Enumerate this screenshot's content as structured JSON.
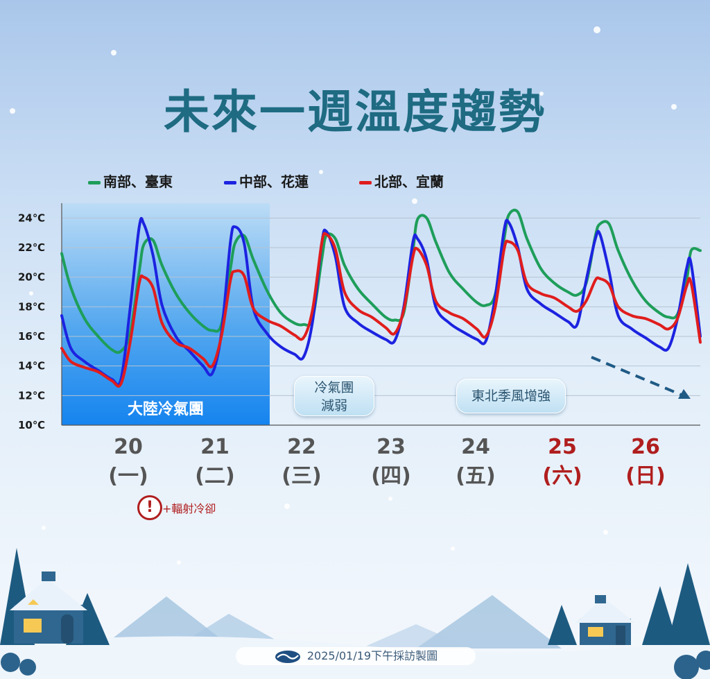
{
  "title": "未來一週溫度趨勢",
  "legend": [
    {
      "label": "南部、臺東",
      "color": "#1e9e5a"
    },
    {
      "label": "中部、花蓮",
      "color": "#1c23e0"
    },
    {
      "label": "北部、宜蘭",
      "color": "#e01d1d"
    }
  ],
  "days": [
    {
      "date": "20",
      "weekday": "(一)",
      "weekend": false
    },
    {
      "date": "21",
      "weekday": "(二)",
      "weekend": false
    },
    {
      "date": "22",
      "weekday": "(三)",
      "weekend": false
    },
    {
      "date": "23",
      "weekday": "(四)",
      "weekend": false
    },
    {
      "date": "24",
      "weekday": "(五)",
      "weekend": false
    },
    {
      "date": "25",
      "weekday": "(六)",
      "weekend": true
    },
    {
      "date": "26",
      "weekday": "(日)",
      "weekend": true
    }
  ],
  "annotations": {
    "cold_air_mass": "大陸冷氣團",
    "cold_weakening_line1": "冷氣團",
    "cold_weakening_line2": "減弱",
    "northeast_monsoon": "東北季風增強",
    "radiative_cooling": "+輻射冷卻",
    "warning_symbol": "!"
  },
  "footer": "2025/01/19下午採訪製圖",
  "icons": [
    "warning-icon",
    "trend-arrow-icon",
    "cwa-logo-icon"
  ],
  "chart_data": {
    "type": "line",
    "x_unit": "day index (0 = 20日 00:00, 7 = 27日 00:00)",
    "yticks": [
      "24℃",
      "22℃",
      "20℃",
      "18℃",
      "16℃",
      "14℃",
      "12℃",
      "10℃"
    ],
    "ylim": [
      10,
      25
    ],
    "xlim": [
      0,
      7
    ],
    "grid": true,
    "series": [
      {
        "name": "南部、臺東",
        "color": "#1e9e5a",
        "x": [
          0,
          0.1,
          0.25,
          0.4,
          0.55,
          0.65,
          0.75,
          0.85,
          0.9,
          1.0,
          1.1,
          1.25,
          1.4,
          1.55,
          1.65,
          1.75,
          1.85,
          1.9,
          2.0,
          2.1,
          2.25,
          2.4,
          2.55,
          2.65,
          2.75,
          2.85,
          2.9,
          3.0,
          3.1,
          3.25,
          3.4,
          3.55,
          3.65,
          3.75,
          3.85,
          3.9,
          4.0,
          4.1,
          4.25,
          4.4,
          4.55,
          4.65,
          4.75,
          4.85,
          4.9,
          5.0,
          5.1,
          5.25,
          5.4,
          5.55,
          5.65,
          5.75,
          5.85,
          5.9,
          6.0,
          6.1,
          6.25,
          6.4,
          6.55,
          6.65,
          6.75,
          6.85,
          6.9,
          7.0
        ],
        "values": [
          21.6,
          19.3,
          17.2,
          16.0,
          15.1,
          15.0,
          16.2,
          20.4,
          22.2,
          22.5,
          20.8,
          18.9,
          17.6,
          16.7,
          16.4,
          16.8,
          20.6,
          22.3,
          22.8,
          21.2,
          19.1,
          17.6,
          16.9,
          16.8,
          17.2,
          21.2,
          22.8,
          22.6,
          20.8,
          19.2,
          18.2,
          17.3,
          17.1,
          17.6,
          21.8,
          23.9,
          24.0,
          22.4,
          20.3,
          19.2,
          18.3,
          18.1,
          18.8,
          22.6,
          24.2,
          24.4,
          22.6,
          20.6,
          19.6,
          19.0,
          18.8,
          19.6,
          22.8,
          23.6,
          23.6,
          21.8,
          19.8,
          18.4,
          17.6,
          17.3,
          17.5,
          19.8,
          21.8,
          21.8
        ]
      },
      {
        "name": "中部、花蓮",
        "color": "#1c23e0",
        "x": [
          0,
          0.1,
          0.25,
          0.4,
          0.55,
          0.65,
          0.75,
          0.85,
          0.9,
          1.0,
          1.1,
          1.25,
          1.4,
          1.55,
          1.65,
          1.75,
          1.85,
          1.9,
          2.0,
          2.1,
          2.25,
          2.4,
          2.55,
          2.65,
          2.75,
          2.85,
          2.9,
          3.0,
          3.1,
          3.25,
          3.4,
          3.55,
          3.65,
          3.75,
          3.85,
          3.9,
          4.0,
          4.1,
          4.25,
          4.4,
          4.55,
          4.65,
          4.75,
          4.85,
          4.9,
          5.0,
          5.1,
          5.25,
          5.4,
          5.55,
          5.65,
          5.75,
          5.85,
          5.9,
          6.0,
          6.1,
          6.25,
          6.4,
          6.55,
          6.65,
          6.75,
          6.85,
          6.9,
          7.0
        ],
        "values": [
          17.4,
          15.2,
          14.3,
          13.7,
          13.1,
          13.1,
          17.9,
          23.4,
          23.6,
          21.5,
          18.1,
          16.0,
          15.0,
          14.0,
          13.5,
          16.2,
          22.4,
          23.4,
          22.3,
          17.9,
          16.2,
          15.3,
          14.8,
          14.6,
          17.0,
          22.3,
          23.1,
          21.4,
          18.0,
          16.9,
          16.3,
          15.8,
          15.7,
          18.0,
          22.4,
          22.6,
          21.2,
          18.0,
          16.9,
          16.3,
          15.8,
          15.7,
          18.6,
          23.2,
          23.7,
          22.0,
          19.2,
          18.2,
          17.6,
          17.0,
          16.8,
          19.8,
          22.6,
          22.9,
          20.4,
          17.4,
          16.5,
          15.9,
          15.3,
          15.2,
          17.2,
          20.6,
          20.9,
          16.0
        ]
      },
      {
        "name": "北部、宜蘭",
        "color": "#e01d1d",
        "x": [
          0,
          0.1,
          0.25,
          0.4,
          0.55,
          0.65,
          0.75,
          0.85,
          0.9,
          1.0,
          1.1,
          1.25,
          1.4,
          1.55,
          1.65,
          1.75,
          1.85,
          1.9,
          2.0,
          2.1,
          2.25,
          2.4,
          2.55,
          2.65,
          2.75,
          2.85,
          2.9,
          3.0,
          3.1,
          3.25,
          3.4,
          3.55,
          3.65,
          3.75,
          3.85,
          3.9,
          4.0,
          4.1,
          4.25,
          4.4,
          4.55,
          4.65,
          4.75,
          4.85,
          4.9,
          5.0,
          5.1,
          5.25,
          5.4,
          5.55,
          5.65,
          5.75,
          5.85,
          5.9,
          6.0,
          6.1,
          6.25,
          6.4,
          6.55,
          6.65,
          6.75,
          6.85,
          6.9,
          7.0
        ],
        "values": [
          15.2,
          14.3,
          13.9,
          13.6,
          13.0,
          12.8,
          15.6,
          19.6,
          20.0,
          19.3,
          16.9,
          15.6,
          15.2,
          14.5,
          14.0,
          16.0,
          19.8,
          20.4,
          20.1,
          17.9,
          17.1,
          16.7,
          16.1,
          15.9,
          17.8,
          22.3,
          22.9,
          21.9,
          19.0,
          17.8,
          17.3,
          16.6,
          16.2,
          17.8,
          21.4,
          21.9,
          20.8,
          18.4,
          17.6,
          17.2,
          16.5,
          16.0,
          17.9,
          21.9,
          22.4,
          21.8,
          19.6,
          18.9,
          18.6,
          18.0,
          17.7,
          18.4,
          19.8,
          19.9,
          19.5,
          18.0,
          17.4,
          17.2,
          16.8,
          16.5,
          17.2,
          19.4,
          19.6,
          15.6
        ]
      }
    ]
  }
}
